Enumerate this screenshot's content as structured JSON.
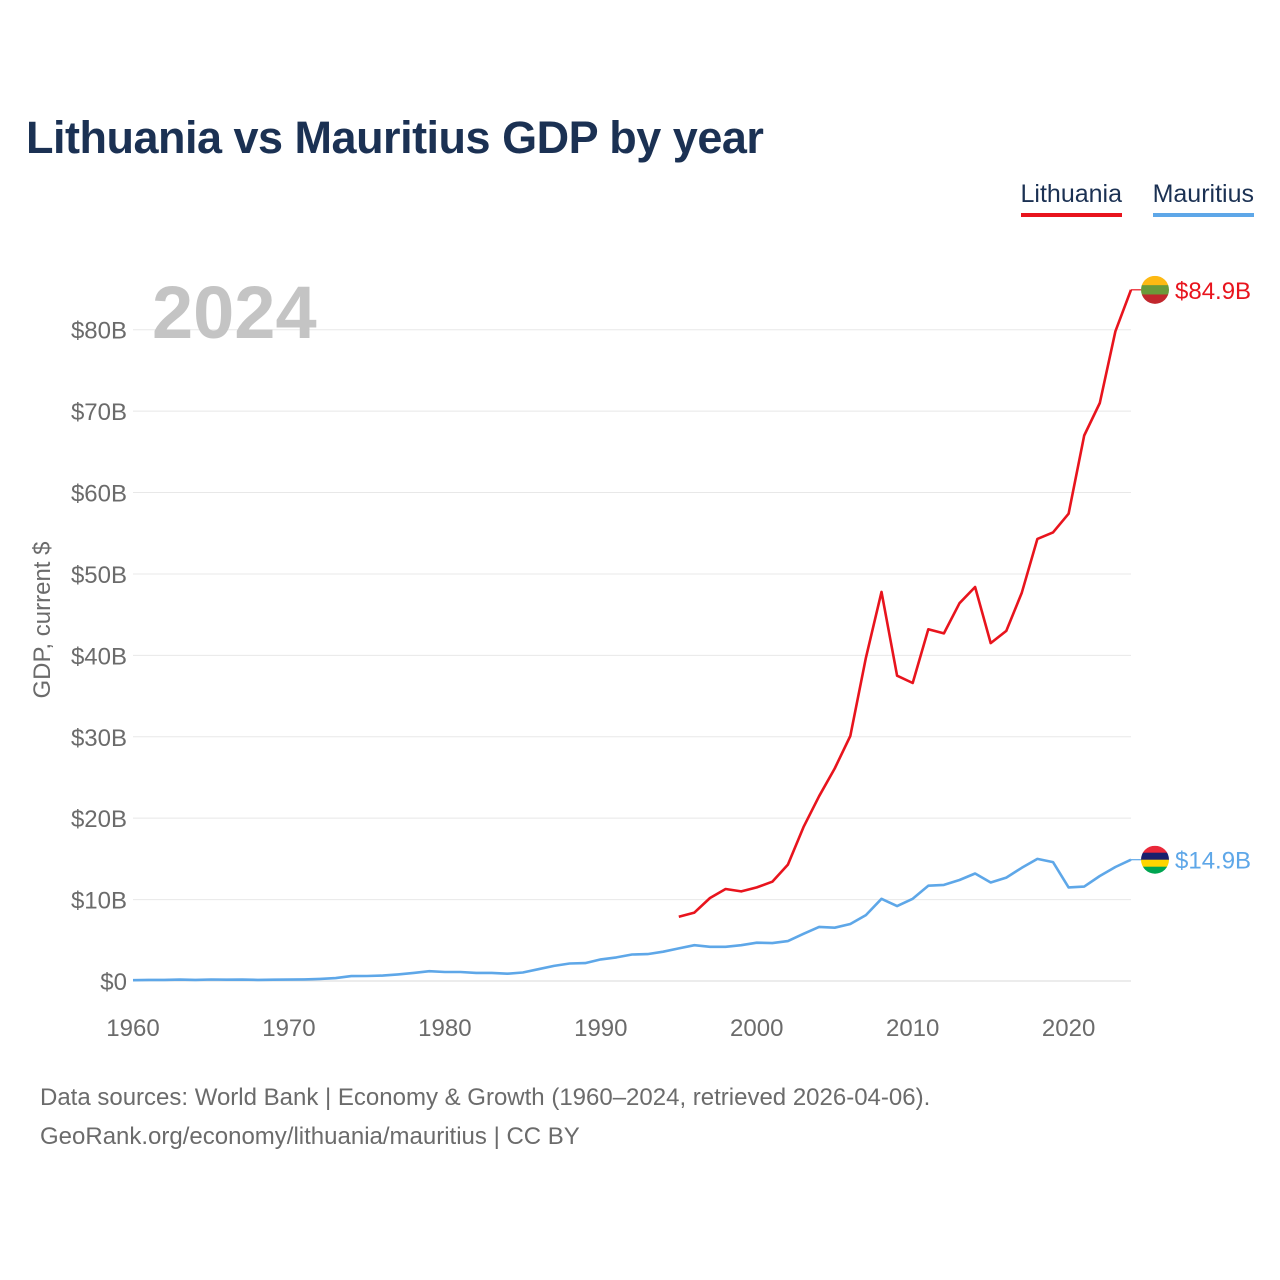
{
  "chart_data": {
    "type": "line",
    "title": "Lithuania vs Mauritius GDP by year",
    "year_label": "2024",
    "ylabel": "GDP, current $",
    "xlabel": "",
    "xlim": [
      1960,
      2024
    ],
    "ylim": [
      0,
      85
    ],
    "x_ticks": [
      1960,
      1970,
      1980,
      1990,
      2000,
      2010,
      2020
    ],
    "x_tick_labels": [
      "1960",
      "1970",
      "1980",
      "1990",
      "2000",
      "2010",
      "2020"
    ],
    "y_ticks": [
      0,
      10,
      20,
      30,
      40,
      50,
      60,
      70,
      80
    ],
    "y_tick_labels": [
      "$0",
      "$10B",
      "$20B",
      "$30B",
      "$40B",
      "$50B",
      "$60B",
      "$70B",
      "$80B"
    ],
    "grid": true,
    "legend": "top-right",
    "series": [
      {
        "name": "Lithuania",
        "color": "#e8141d",
        "end_label": "$84.9B",
        "x": [
          1995,
          1996,
          1997,
          1998,
          1999,
          2000,
          2001,
          2002,
          2003,
          2004,
          2005,
          2006,
          2007,
          2008,
          2009,
          2010,
          2011,
          2012,
          2013,
          2014,
          2015,
          2016,
          2017,
          2018,
          2019,
          2020,
          2021,
          2022,
          2023,
          2024
        ],
        "values": [
          7.9,
          8.4,
          10.2,
          11.3,
          11.0,
          11.5,
          12.2,
          14.3,
          18.9,
          22.7,
          26.1,
          30.1,
          39.7,
          47.8,
          37.5,
          36.6,
          43.2,
          42.7,
          46.4,
          48.4,
          41.5,
          43.0,
          47.7,
          54.3,
          55.1,
          57.4,
          67.0,
          71.0,
          79.8,
          84.9
        ]
      },
      {
        "name": "Mauritius",
        "color": "#5ea7e8",
        "end_label": "$14.9B",
        "x": [
          1960,
          1961,
          1962,
          1963,
          1964,
          1965,
          1966,
          1967,
          1968,
          1969,
          1970,
          1971,
          1972,
          1973,
          1974,
          1975,
          1976,
          1977,
          1978,
          1979,
          1980,
          1981,
          1982,
          1983,
          1984,
          1985,
          1986,
          1987,
          1988,
          1989,
          1990,
          1991,
          1992,
          1993,
          1994,
          1995,
          1996,
          1997,
          1998,
          1999,
          2000,
          2001,
          2002,
          2003,
          2004,
          2005,
          2006,
          2007,
          2008,
          2009,
          2010,
          2011,
          2012,
          2013,
          2014,
          2015,
          2016,
          2017,
          2018,
          2019,
          2020,
          2021,
          2022,
          2023,
          2024
        ],
        "values": [
          0.1,
          0.13,
          0.14,
          0.17,
          0.14,
          0.18,
          0.16,
          0.17,
          0.14,
          0.16,
          0.17,
          0.2,
          0.26,
          0.36,
          0.6,
          0.62,
          0.66,
          0.81,
          1.0,
          1.2,
          1.1,
          1.1,
          1.0,
          1.0,
          0.9,
          1.05,
          1.45,
          1.85,
          2.15,
          2.2,
          2.65,
          2.9,
          3.25,
          3.3,
          3.6,
          4.0,
          4.4,
          4.2,
          4.2,
          4.4,
          4.7,
          4.65,
          4.9,
          5.8,
          6.65,
          6.55,
          7.0,
          8.1,
          10.1,
          9.2,
          10.1,
          11.7,
          11.8,
          12.4,
          13.2,
          12.1,
          12.7,
          13.9,
          15.0,
          14.6,
          11.5,
          11.6,
          12.9,
          14.0,
          14.9
        ]
      }
    ]
  },
  "source": {
    "line1": "Data sources: World Bank | Economy & Growth (1960–2024, retrieved 2026-04-06).",
    "line2": "GeoRank.org/economy/lithuania/mauritius | CC BY"
  }
}
